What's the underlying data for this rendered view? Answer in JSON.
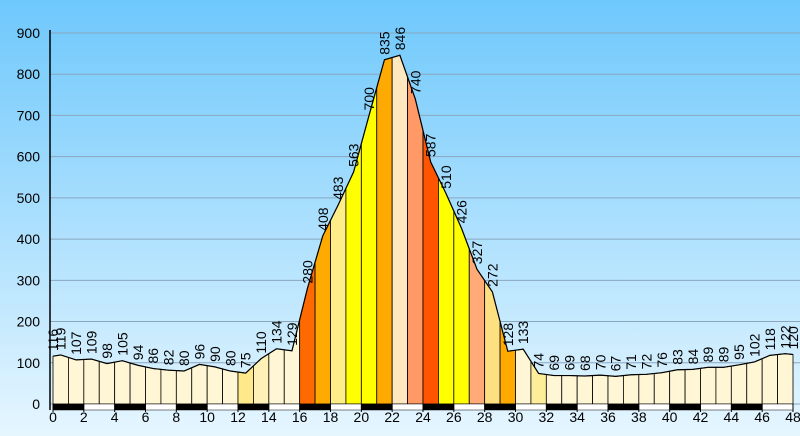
{
  "chart_data": {
    "type": "area",
    "x": [
      0,
      0.5,
      1.5,
      2.5,
      3.5,
      4.5,
      5.5,
      6.5,
      7.5,
      8.5,
      9.5,
      10.5,
      11.5,
      12.5,
      13.5,
      14.5,
      15.5,
      16.5,
      17.5,
      18.5,
      19.5,
      20.5,
      21.5,
      22.5,
      23.5,
      24.5,
      25.5,
      26.5,
      27.5,
      28.5,
      29.5,
      30.5,
      31.5,
      32.5,
      33.5,
      34.5,
      35.5,
      36.5,
      37.5,
      38.5,
      39.5,
      40.5,
      41.5,
      42.5,
      43.5,
      44.5,
      45.5,
      46.5,
      47.5,
      48
    ],
    "values": [
      116,
      119,
      107,
      109,
      98,
      105,
      94,
      86,
      82,
      80,
      96,
      90,
      80,
      75,
      110,
      134,
      129,
      280,
      408,
      483,
      563,
      700,
      835,
      846,
      740,
      587,
      510,
      426,
      327,
      272,
      128,
      133,
      74,
      69,
      69,
      68,
      70,
      67,
      71,
      72,
      76,
      83,
      84,
      89,
      89,
      95,
      102,
      118,
      122,
      120
    ],
    "colors": [
      "#fff6d5",
      "#fff6d5",
      "#fff6d5",
      "#fff6d5",
      "#fff6d5",
      "#fff6d5",
      "#fff6d5",
      "#fff6d5",
      "#fff6d5",
      "#fff6d5",
      "#fff6d5",
      "#fff6d5",
      "#ffe98a",
      "#fff0b8",
      "#fff6d5",
      "#fff6d5",
      "#ff6a00",
      "#ffaa00",
      "#ffee88",
      "#ffff00",
      "#ffff00",
      "#ffaa00",
      "#ffe8c0",
      "#ff9966",
      "#ff5500",
      "#ffff00",
      "#ffff00",
      "#ffaa77",
      "#ffe080",
      "#ffaa00",
      "#fff6d5",
      "#ffee99",
      "#fff6d5",
      "#fff6d5",
      "#fff6d5",
      "#fff6d5",
      "#fff6d5",
      "#fff6d5",
      "#fff6d5",
      "#fff6d5",
      "#fff6d5",
      "#fff6d5",
      "#fff6d5",
      "#fff6d5",
      "#fff6d5",
      "#fff6d5",
      "#fff6d5",
      "#fff6d5"
    ],
    "xlim": [
      0,
      48
    ],
    "xticks": [
      0,
      2,
      4,
      6,
      8,
      10,
      12,
      14,
      16,
      18,
      20,
      22,
      24,
      26,
      28,
      30,
      32,
      34,
      36,
      38,
      40,
      42,
      44,
      46,
      48
    ],
    "ylim": [
      0,
      980
    ],
    "yticks": [
      0,
      100,
      200,
      300,
      400,
      500,
      600,
      700,
      800,
      900
    ],
    "grid": true
  }
}
